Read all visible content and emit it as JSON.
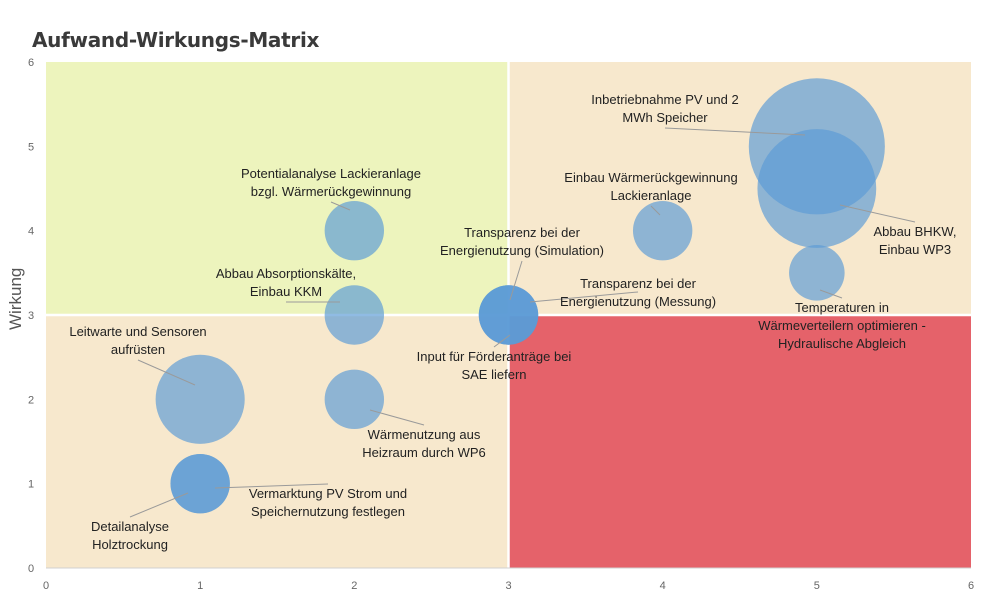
{
  "chart_data": {
    "type": "bubble",
    "title": "Aufwand-Wirkungs-Matrix",
    "xlabel": "",
    "ylabel": "Wirkung",
    "xlim": [
      0,
      6
    ],
    "ylim": [
      0,
      6
    ],
    "x_ticks": [
      "0",
      "1",
      "2",
      "3",
      "4",
      "5",
      "6"
    ],
    "y_ticks": [
      "0",
      "1",
      "2",
      "3",
      "4",
      "5",
      "6"
    ],
    "grid": false,
    "quadrants": [
      {
        "x": [
          0,
          3
        ],
        "y": [
          3,
          6
        ],
        "color": "#edf4bd"
      },
      {
        "x": [
          3,
          6
        ],
        "y": [
          3,
          6
        ],
        "color": "#f7e8cd"
      },
      {
        "x": [
          0,
          3
        ],
        "y": [
          0,
          3
        ],
        "color": "#f7e8cd"
      },
      {
        "x": [
          3,
          6
        ],
        "y": [
          0,
          3
        ],
        "color": "#e5626a"
      }
    ],
    "bubble_color": "#5b9bd5",
    "points": [
      {
        "label": [
          "Inbetriebnahme PV und 2",
          "MWh Speicher"
        ],
        "x": 5,
        "y": 5,
        "size": 4.2
      },
      {
        "label": [
          "Abbau BHKW,",
          "Einbau WP3"
        ],
        "x": 5,
        "y": 4.5,
        "size": 3.2
      },
      {
        "label": [
          "Einbau Wärmerückgewinnung",
          "Lackieranlage"
        ],
        "x": 4,
        "y": 4,
        "size": 0.8
      },
      {
        "label": [
          "Temperaturen in",
          "Wärmeverteilern optimieren -",
          "Hydraulische Abgleich"
        ],
        "x": 5,
        "y": 3.5,
        "size": 0.7
      },
      {
        "label": [
          "Potentialanalyse Lackieranlage",
          "bzgl. Wärmerückgewinnung"
        ],
        "x": 2,
        "y": 4,
        "size": 0.8
      },
      {
        "label": [
          "Abbau Absorptionskälte,",
          "Einbau KKM"
        ],
        "x": 2,
        "y": 3,
        "size": 0.8
      },
      {
        "label": [
          "Transparenz bei der",
          "Energienutzung (Simulation)"
        ],
        "x": 3,
        "y": 3,
        "size": 0.8
      },
      {
        "label": [
          "Transparenz bei der",
          "Energienutzung (Messung)"
        ],
        "x": 3,
        "y": 3,
        "size": 0.8
      },
      {
        "label": [
          "Input für Förderanträge bei",
          "SAE liefern"
        ],
        "x": 3,
        "y": 3,
        "size": 0.8
      },
      {
        "label": [
          "Leitwarte und Sensoren",
          "aufrüsten"
        ],
        "x": 1,
        "y": 2,
        "size": 1.8
      },
      {
        "label": [
          "Wärmenutzung aus",
          "Heizraum durch WP6"
        ],
        "x": 2,
        "y": 2,
        "size": 0.8
      },
      {
        "label": [
          "Vermarktung PV Strom und",
          "Speichernutzung festlegen"
        ],
        "x": 1,
        "y": 1,
        "size": 0.8
      },
      {
        "label": [
          "Detailanalyse",
          "Holztrockung"
        ],
        "x": 1,
        "y": 1,
        "size": 0.8
      }
    ]
  }
}
